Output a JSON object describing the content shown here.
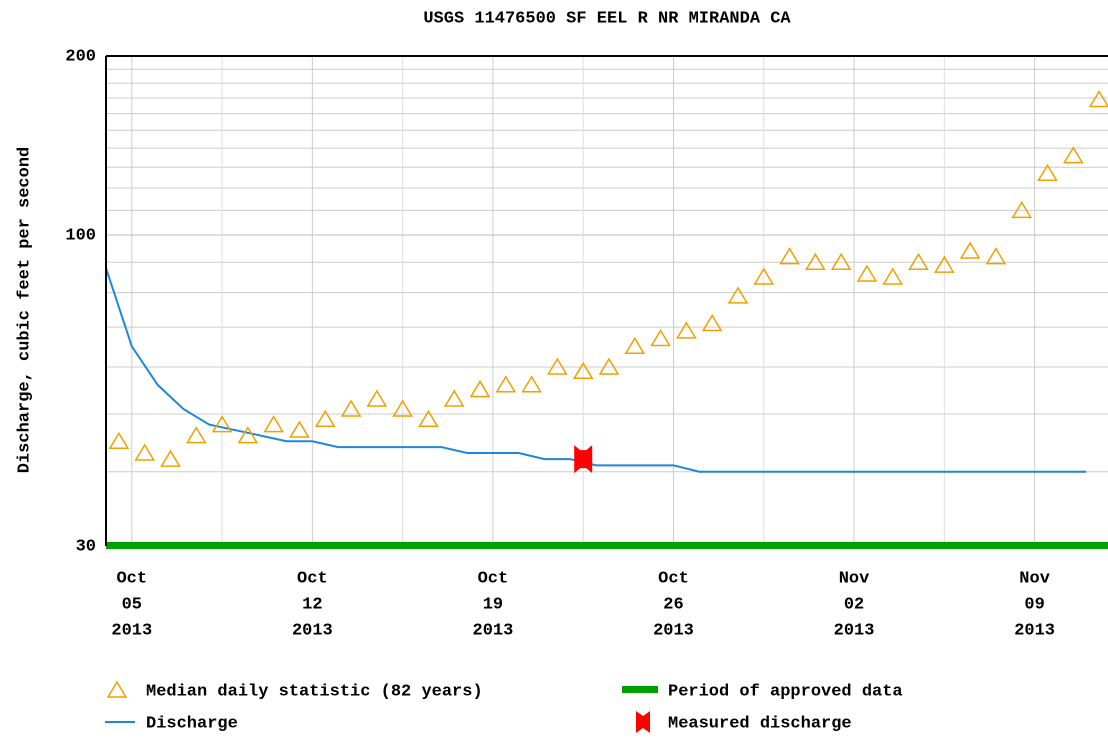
{
  "chart_data": {
    "type": "line",
    "title": "USGS 11476500 SF EEL R NR MIRANDA CA",
    "y_label": "Discharge, cubic feet per second",
    "log_y": true,
    "grid": true,
    "ylim": [
      30,
      200
    ],
    "yticks": [
      30,
      100,
      200
    ],
    "yminor": [
      40,
      50,
      60,
      70,
      80,
      90,
      110,
      120,
      130,
      140,
      150,
      160,
      170,
      180,
      190
    ],
    "xlim": [
      "2013-10-04",
      "2013-11-12"
    ],
    "xticks": [
      {
        "value": "2013-10-05",
        "label": [
          "Oct",
          "05",
          "2013"
        ]
      },
      {
        "value": "2013-10-12",
        "label": [
          "Oct",
          "12",
          "2013"
        ]
      },
      {
        "value": "2013-10-19",
        "label": [
          "Oct",
          "19",
          "2013"
        ]
      },
      {
        "value": "2013-10-26",
        "label": [
          "Oct",
          "26",
          "2013"
        ]
      },
      {
        "value": "2013-11-02",
        "label": [
          "Nov",
          "02",
          "2013"
        ]
      },
      {
        "value": "2013-11-09",
        "label": [
          "Nov",
          "09",
          "2013"
        ]
      }
    ],
    "x": [
      "2013-10-04",
      "2013-10-05",
      "2013-10-06",
      "2013-10-07",
      "2013-10-08",
      "2013-10-09",
      "2013-10-10",
      "2013-10-11",
      "2013-10-12",
      "2013-10-13",
      "2013-10-14",
      "2013-10-15",
      "2013-10-16",
      "2013-10-17",
      "2013-10-18",
      "2013-10-19",
      "2013-10-20",
      "2013-10-21",
      "2013-10-22",
      "2013-10-23",
      "2013-10-24",
      "2013-10-25",
      "2013-10-26",
      "2013-10-27",
      "2013-10-28",
      "2013-10-29",
      "2013-10-30",
      "2013-10-31",
      "2013-11-01",
      "2013-11-02",
      "2013-11-03",
      "2013-11-04",
      "2013-11-05",
      "2013-11-06",
      "2013-11-07",
      "2013-11-08",
      "2013-11-09",
      "2013-11-10",
      "2013-11-11"
    ],
    "series": [
      {
        "name": "Median daily statistic (82 years)",
        "style": "triangle",
        "color": "#f0a000",
        "values": [
          45,
          43,
          42,
          46,
          48,
          46,
          48,
          47,
          49,
          51,
          53,
          51,
          49,
          53,
          55,
          56,
          56,
          60,
          59,
          60,
          65,
          67,
          69,
          71,
          79,
          85,
          92,
          90,
          90,
          86,
          85,
          90,
          89,
          94,
          92,
          110,
          127,
          136,
          169
        ]
      },
      {
        "name": "Discharge",
        "style": "line",
        "color": "#1e88d8",
        "values": [
          88,
          65,
          56,
          51,
          48,
          47,
          46,
          45,
          45,
          44,
          44,
          44,
          44,
          44,
          43,
          43,
          43,
          42,
          42,
          41,
          41,
          41,
          41,
          40,
          40,
          40,
          40,
          40,
          40,
          40,
          40,
          40,
          40,
          40,
          40,
          40,
          40,
          40,
          40
        ]
      },
      {
        "name": "Measured discharge",
        "style": "marker",
        "color": "#ff0000",
        "x": [
          "2013-10-22"
        ],
        "values": [
          42
        ]
      }
    ],
    "approved_periods": [
      {
        "name": "Period of approved data",
        "color": "#00a000",
        "start": "2013-10-04",
        "end": "2013-11-12"
      }
    ]
  }
}
